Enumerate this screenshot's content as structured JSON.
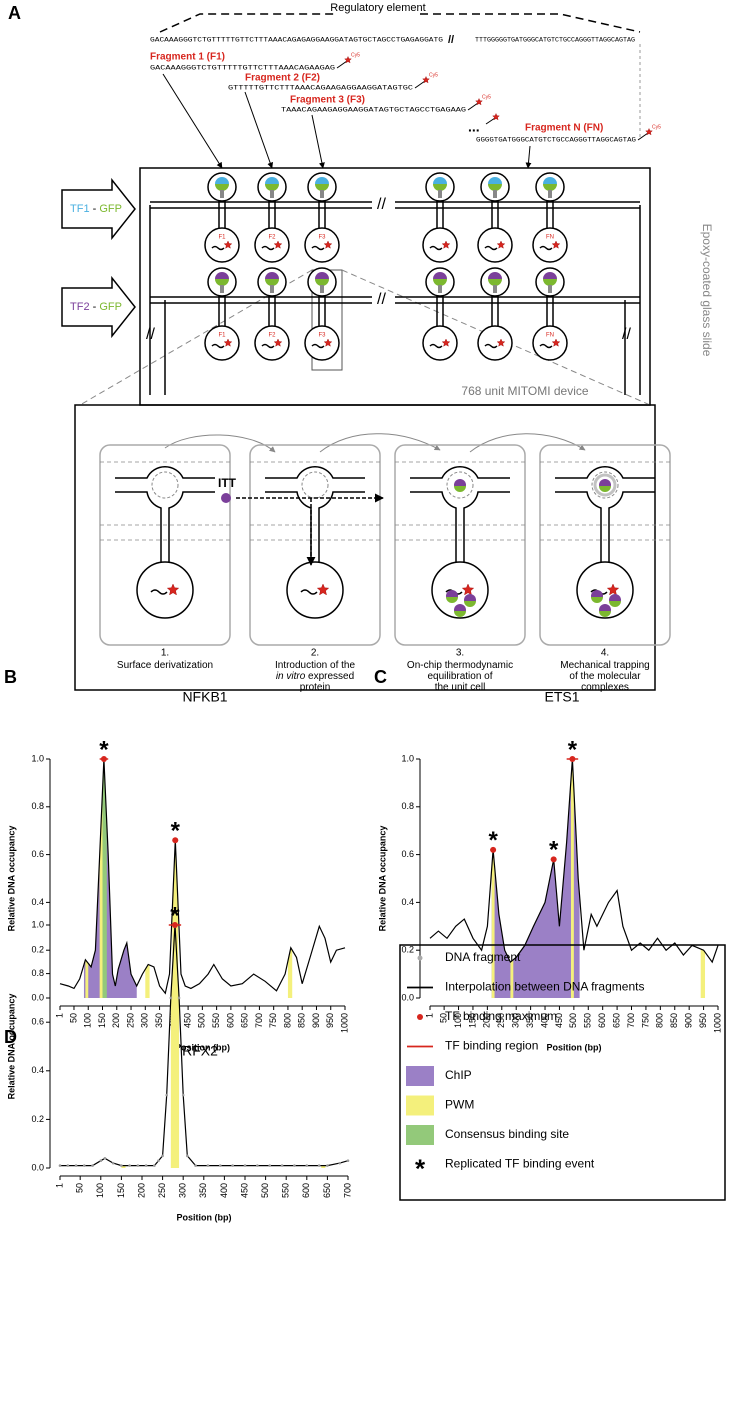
{
  "diagram": {
    "panel": "A",
    "regulatory_element": "Regulatory element",
    "sequence_left": "GACAAAGGGTCTGTTTTTGTTCTTTAAACAGAGAGGAAGGATAGTGCTAGCCTGAGAGGATG",
    "break": "//",
    "sequence_right": "TTTGGGGGTGATGGGCATGTCTGCCAGGGTTAGGCAGTAG",
    "fragments": [
      {
        "label": "Fragment 1 (F1)",
        "sequence": "GACAAAGGGTCTGTTTTTGTTCTTTAAACAGAAGAG"
      },
      {
        "label": "Fragment 2 (F2)",
        "sequence": "GTTTTTGTTCTTTAAACAGAAGAGGAAGGATAGTGC"
      },
      {
        "label": "Fragment 3 (F3)",
        "sequence": "TAAACAGAAGAGGAAGGATAGTGCTAGCCTGAGAAG"
      },
      {
        "label": "Fragment N (FN)",
        "sequence": "GGGGTGATGGGCATGTCTGCCAGGGTTAGGCAGTAG"
      }
    ],
    "ellipsis": "...",
    "dye": "Cy5",
    "tf_inputs": [
      {
        "tf": "TF1",
        "dash": " - ",
        "gfp": "GFP",
        "tf_color": "#4ab0e0"
      },
      {
        "tf": "TF2",
        "dash": " - ",
        "gfp": "GFP",
        "tf_color": "#7b3f9a"
      }
    ],
    "gfp_color": "#7cb82f",
    "unit_labels": [
      "F1",
      "F2",
      "F3",
      "FN"
    ],
    "slide": "Epoxy-coated glass slide",
    "device": "768 unit MITOMI device",
    "itt": "ITT",
    "steps": [
      {
        "number": "1.",
        "lines": [
          [
            {
              "t": "Surface derivatization"
            }
          ]
        ]
      },
      {
        "number": "2.",
        "lines": [
          [
            {
              "t": "Introduction of the"
            }
          ],
          [
            {
              "t": "in vitro",
              "i": true
            },
            {
              "t": " expressed"
            }
          ],
          [
            {
              "t": "protein"
            }
          ]
        ]
      },
      {
        "number": "3.",
        "lines": [
          [
            {
              "t": "On-chip thermodynamic"
            }
          ],
          [
            {
              "t": "equilibration of"
            }
          ],
          [
            {
              "t": "the unit cell"
            }
          ]
        ]
      },
      {
        "number": "4.",
        "lines": [
          [
            {
              "t": "Mechanical trapping"
            }
          ],
          [
            {
              "t": "of the molecular"
            }
          ],
          [
            {
              "t": "complexes"
            }
          ]
        ]
      }
    ]
  },
  "chart_data": [
    {
      "type": "line",
      "panel": "B",
      "title": "NFKB1",
      "x_label": "Position (bp)",
      "y_label": "Relative DNA occupancy",
      "xlim": [
        1,
        1000
      ],
      "ylim": [
        0,
        1
      ],
      "xticks": [
        1,
        50,
        100,
        150,
        200,
        250,
        300,
        350,
        400,
        450,
        500,
        550,
        600,
        650,
        700,
        750,
        800,
        850,
        900,
        950,
        1000
      ],
      "yticks": [
        {
          "value": 0,
          "label": "0.0"
        },
        0.2,
        0.4,
        0.6,
        0.8,
        {
          "value": 1,
          "label": "1.0"
        }
      ],
      "x": [
        1,
        30,
        50,
        70,
        90,
        110,
        125,
        140,
        155,
        170,
        185,
        195,
        205,
        225,
        235,
        250,
        270,
        290,
        310,
        330,
        350,
        370,
        385,
        405,
        425,
        440,
        460,
        490,
        520,
        540,
        570,
        600,
        640,
        680,
        720,
        760,
        790,
        810,
        830,
        850,
        880,
        910,
        930,
        950,
        970,
        1000
      ],
      "values": [
        0.06,
        0.05,
        0.04,
        0.08,
        0.16,
        0.13,
        0.2,
        0.6,
        1.0,
        0.6,
        0.1,
        0.05,
        0.12,
        0.2,
        0.23,
        0.1,
        0.05,
        0.1,
        0.14,
        0.13,
        0.05,
        0.02,
        0.1,
        0.66,
        0.1,
        0.05,
        0.04,
        0.06,
        0.1,
        0.14,
        0.08,
        0.05,
        0.06,
        0.1,
        0.07,
        0.03,
        0.1,
        0.21,
        0.17,
        0.06,
        0.18,
        0.3,
        0.25,
        0.15,
        0.2,
        0.21
      ],
      "chip": [
        [
          85,
          270
        ]
      ],
      "pwm": [
        [
          90,
          100
        ],
        [
          140,
          160
        ],
        [
          300,
          315
        ],
        [
          395,
          415
        ],
        [
          800,
          815
        ]
      ],
      "consensus": [
        [
          150,
          165
        ]
      ],
      "binding_regions": [
        [
          140,
          170
        ],
        [
          395,
          415
        ]
      ],
      "maxima": [
        {
          "x": 155,
          "y": 1.0
        },
        {
          "x": 405,
          "y": 0.66
        }
      ],
      "star": "*",
      "line_color": "#000000",
      "chip_color": "#9b80c6",
      "pwm_color": "#f4f07c",
      "consensus_color": "#93c97a",
      "maximum_color": "#d7261e",
      "show_fragments": false
    },
    {
      "type": "line",
      "panel": "C",
      "title": "ETS1",
      "x_label": "Position (bp)",
      "y_label": "Relative DNA occupancy",
      "xlim": [
        1,
        1000
      ],
      "ylim": [
        0,
        1
      ],
      "xticks": [
        1,
        50,
        100,
        150,
        200,
        250,
        300,
        350,
        400,
        450,
        500,
        550,
        600,
        650,
        700,
        750,
        800,
        850,
        900,
        950,
        1000
      ],
      "yticks": [
        {
          "value": 0,
          "label": "0.0"
        },
        0.2,
        0.4,
        0.6,
        0.8,
        {
          "value": 1,
          "label": "1.0"
        }
      ],
      "x": [
        1,
        30,
        60,
        90,
        120,
        150,
        180,
        200,
        220,
        240,
        260,
        280,
        300,
        330,
        360,
        400,
        430,
        450,
        475,
        495,
        515,
        535,
        560,
        580,
        620,
        650,
        670,
        700,
        730,
        760,
        790,
        820,
        850,
        880,
        910,
        950,
        980,
        1000
      ],
      "values": [
        0.25,
        0.28,
        0.25,
        0.3,
        0.33,
        0.25,
        0.2,
        0.3,
        0.62,
        0.35,
        0.2,
        0.15,
        0.17,
        0.22,
        0.3,
        0.4,
        0.58,
        0.3,
        0.65,
        1.0,
        0.5,
        0.2,
        0.35,
        0.3,
        0.4,
        0.45,
        0.3,
        0.2,
        0.23,
        0.2,
        0.25,
        0.2,
        0.23,
        0.18,
        0.22,
        0.2,
        0.15,
        0.22
      ],
      "chip": [
        [
          215,
          520
        ]
      ],
      "pwm": [
        [
          215,
          225
        ],
        [
          280,
          290
        ],
        [
          490,
          500
        ],
        [
          940,
          955
        ]
      ],
      "consensus": [],
      "binding_regions": [
        [
          210,
          230
        ],
        [
          420,
          440
        ],
        [
          475,
          515
        ]
      ],
      "maxima": [
        {
          "x": 220,
          "y": 0.62
        },
        {
          "x": 430,
          "y": 0.58
        },
        {
          "x": 495,
          "y": 1.0
        }
      ],
      "star": "*",
      "line_color": "#000000",
      "chip_color": "#9b80c6",
      "pwm_color": "#f4f07c",
      "consensus_color": "#93c97a",
      "maximum_color": "#d7261e",
      "show_fragments": false
    },
    {
      "type": "line",
      "panel": "D",
      "title": "RFX2",
      "x_label": "Position (bp)",
      "y_label": "Relative DNA occupancy",
      "xlim": [
        1,
        700
      ],
      "ylim": [
        0,
        1
      ],
      "xticks": [
        1,
        50,
        100,
        150,
        200,
        250,
        300,
        350,
        400,
        450,
        500,
        550,
        600,
        650,
        700
      ],
      "yticks": [
        {
          "value": 0,
          "label": "0.0"
        },
        0.2,
        0.4,
        0.6,
        0.8,
        {
          "value": 1,
          "label": "1.0"
        }
      ],
      "x": [
        1,
        20,
        40,
        60,
        80,
        100,
        110,
        130,
        150,
        170,
        190,
        210,
        230,
        240,
        250,
        260,
        270,
        280,
        290,
        300,
        310,
        330,
        360,
        390,
        420,
        450,
        480,
        510,
        540,
        570,
        600,
        630,
        650,
        680,
        700
      ],
      "values": [
        0.01,
        0.01,
        0.01,
        0.01,
        0.01,
        0.03,
        0.04,
        0.02,
        0.01,
        0.01,
        0.01,
        0.01,
        0.01,
        0.03,
        0.05,
        0.3,
        0.7,
        1.0,
        0.7,
        0.3,
        0.05,
        0.01,
        0.01,
        0.01,
        0.01,
        0.01,
        0.01,
        0.01,
        0.01,
        0.01,
        0.01,
        0.01,
        0.01,
        0.02,
        0.03
      ],
      "chip": [],
      "pwm": [
        [
          150,
          160
        ],
        [
          270,
          290
        ],
        [
          635,
          645
        ]
      ],
      "consensus": [],
      "binding_regions": [
        [
          265,
          295
        ]
      ],
      "maxima": [
        {
          "x": 280,
          "y": 1.0
        }
      ],
      "star": "*",
      "line_color": "#000000",
      "chip_color": "#9b80c6",
      "pwm_color": "#f4f07c",
      "consensus_color": "#93c97a",
      "maximum_color": "#d7261e",
      "show_fragments": true,
      "fragment_color": "#999999"
    }
  ],
  "legend": {
    "items": [
      {
        "label": "DNA fragment",
        "kind": "point",
        "color": "#aaaaaa"
      },
      {
        "label": "Interpolation between DNA fragments",
        "kind": "line",
        "color": "#000000"
      },
      {
        "label": "TF binding maximum",
        "kind": "point",
        "color": "#d7261e"
      },
      {
        "label": "TF binding region",
        "kind": "line",
        "color": "#d7261e"
      },
      {
        "label": "ChIP",
        "kind": "box",
        "color": "#9b80c6"
      },
      {
        "label": "PWM",
        "kind": "box",
        "color": "#f4f07c"
      },
      {
        "label": "Consensus binding site",
        "kind": "box",
        "color": "#93c97a"
      },
      {
        "label": "Replicated TF binding event",
        "kind": "symbol",
        "symbol": "*"
      }
    ]
  }
}
